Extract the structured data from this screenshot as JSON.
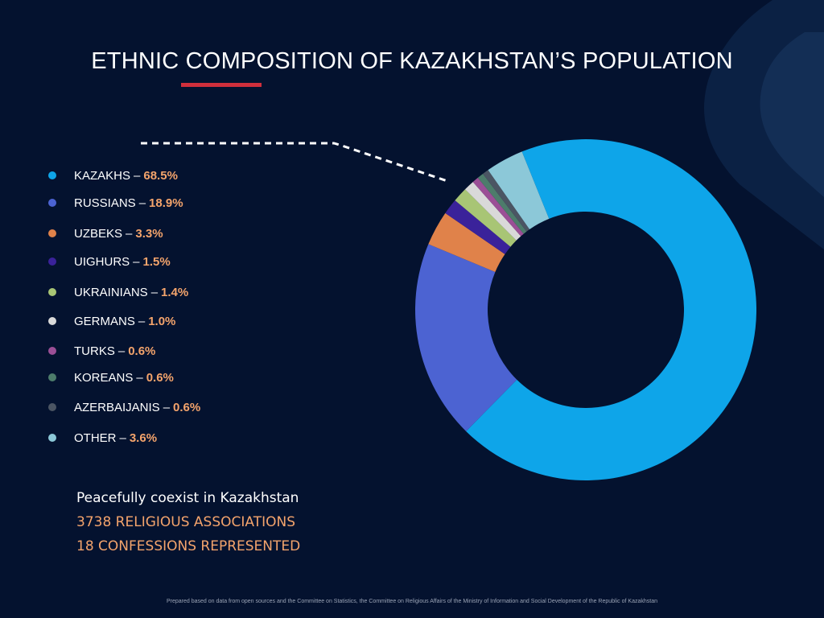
{
  "title": "ETHNIC COMPOSITION OF KAZAKHSTAN’S POPULATION",
  "chart_data": {
    "type": "pie",
    "categories": [
      "KAZAKHS",
      "RUSSIANS",
      "UZBEKS",
      "UIGHURS",
      "UKRAINIANS",
      "GERMANS",
      "TURKS",
      "KOREANS",
      "AZERBAIJANIS",
      "OTHER"
    ],
    "values": [
      68.5,
      18.9,
      3.3,
      1.5,
      1.4,
      1.0,
      0.6,
      0.6,
      0.6,
      3.6
    ],
    "value_labels": [
      "68.5%",
      "18.9%",
      "3.3%",
      "1.5%",
      "1.4%",
      "1.0%",
      "0.6%",
      "0.6%",
      "0.6%",
      "3.6%"
    ],
    "colors": [
      "#0ea5e9",
      "#4c63d2",
      "#e0824a",
      "#3a229a",
      "#a8c575",
      "#d9d9d9",
      "#9b4f96",
      "#4d7c6b",
      "#4b5563",
      "#8cc8d8"
    ],
    "donut": true,
    "legend_position": "left"
  },
  "info": {
    "line1": "Peacefully coexist in Kazakhstan",
    "line2": "3738 RELIGIOUS ASSOCIATIONS",
    "line3": "18 CONFESSIONS REPRESENTED"
  },
  "footnote": "Prepared based on data from open sources  and the Committee on Statistics, the Committee on Religious Affairs of the Ministry of Information and Social Development of the Republic of Kazakhstan"
}
